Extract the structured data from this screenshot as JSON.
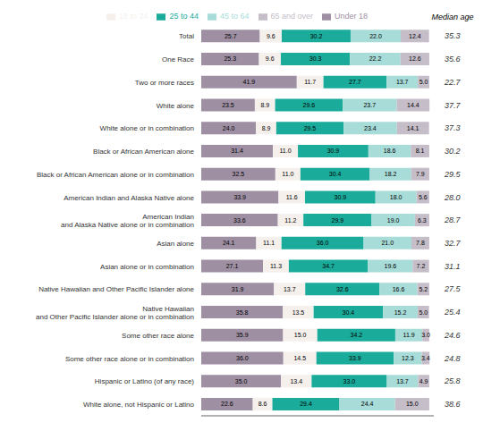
{
  "chart_data": {
    "type": "bar",
    "orientation": "horizontal",
    "stacked": true,
    "data_labels": true,
    "grid": false,
    "legend": "top",
    "tick_labels": "y",
    "xlim": [
      0,
      102
    ],
    "categories": [
      "Total",
      "One Race",
      "Two or more races",
      "White alone",
      "White alone or in combination",
      "Black or African American alone",
      "Black or African American alone or in combination",
      "American Indian and Alaska Native alone",
      "American Indian\nand Alaska Native alone or in combination",
      "Asian alone",
      "Asian alone or in combination",
      "Native Hawaiian and Other Pacific Islander alone",
      "Native Hawaiian\nand Other Pacific Islander alone or in combination",
      "Some other race alone",
      "Some other race alone or in combination",
      "Hispanic or Latino (of any race)",
      "White alone, not Hispanic or Latino"
    ],
    "series": [
      {
        "name": "Under 18",
        "color": "#9e8fa3",
        "values": [
          25.7,
          25.3,
          41.9,
          23.5,
          24.0,
          31.4,
          32.5,
          33.9,
          33.6,
          24.1,
          27.1,
          31.9,
          35.8,
          35.9,
          36.0,
          35.0,
          22.6
        ],
        "value_labels": [
          "25.7",
          "25.3",
          "41.9",
          "23.5",
          "24.0",
          "31.4",
          "32.5",
          "33.9",
          "33.6",
          "24.1",
          "27.1",
          "31.9",
          "35.8",
          "35.9",
          "36.0",
          "35.0",
          "22.6"
        ]
      },
      {
        "name": "18 to 24",
        "color": "#f5f0ec",
        "values": [
          9.6,
          9.6,
          11.7,
          8.9,
          8.9,
          11.0,
          11.0,
          11.6,
          11.2,
          11.1,
          11.3,
          13.7,
          13.5,
          15.0,
          14.5,
          13.4,
          8.6
        ],
        "value_labels": [
          "9.6",
          "9.6",
          "11.7",
          "8.9",
          "8.9",
          "11.0",
          "11.0",
          "11.6",
          "11.2",
          "11.1",
          "11.3",
          "13.7",
          "13.5",
          "15.0",
          "14.5",
          "13.4",
          "8.6"
        ]
      },
      {
        "name": "25 to 44",
        "color": "#1aab9b",
        "values": [
          30.2,
          30.3,
          27.7,
          29.6,
          29.5,
          30.9,
          30.4,
          30.9,
          29.9,
          36.0,
          34.7,
          32.6,
          30.4,
          34.2,
          33.9,
          33.0,
          29.4
        ],
        "value_labels": [
          "30.2",
          "30.3",
          "27.7",
          "29.6",
          "29.5",
          "30.9",
          "30.4",
          "30.9",
          "29.9",
          "36.0",
          "34.7",
          "32.6",
          "30.4",
          "34.2",
          "33.9",
          "33.0",
          "29.4"
        ]
      },
      {
        "name": "45 to 64",
        "color": "#a8dcd8",
        "values": [
          22.0,
          22.2,
          13.7,
          23.7,
          23.4,
          18.6,
          18.2,
          18.0,
          19.0,
          21.0,
          19.6,
          16.6,
          15.2,
          11.9,
          12.3,
          13.7,
          24.4
        ],
        "value_labels": [
          "22.0",
          "22.2",
          "13.7",
          "23.7",
          "23.4",
          "18.6",
          "18.2",
          "18.0",
          "19.0",
          "21.0",
          "19.6",
          "16.6",
          "15.2",
          "11.9",
          "12.3",
          "13.7",
          "24.4"
        ]
      },
      {
        "name": "65 and over",
        "color": "#c5bdc8",
        "values": [
          12.4,
          12.6,
          5.0,
          14.4,
          14.1,
          8.1,
          7.9,
          5.6,
          6.3,
          7.8,
          7.2,
          5.2,
          5.0,
          3.0,
          3.4,
          4.9,
          15.0
        ],
        "value_labels": [
          "12.4",
          "12.6",
          "5.0",
          "14.4",
          "14.1",
          "8.1",
          "7.9",
          "5.6",
          "6.3",
          "7.8",
          "7.2",
          "5.2",
          "5.0",
          "3.0",
          "3.4",
          "4.9",
          "15.0"
        ]
      }
    ],
    "median_age": {
      "title": "Median age",
      "values": [
        35.3,
        35.6,
        22.7,
        37.7,
        37.3,
        30.2,
        29.5,
        28.0,
        28.7,
        32.7,
        31.1,
        27.5,
        25.4,
        24.6,
        24.8,
        25.8,
        38.6
      ],
      "value_labels": [
        "35.3",
        "35.6",
        "22.7",
        "37.7",
        "37.3",
        "30.2",
        "29.5",
        "28.0",
        "28.7",
        "32.7",
        "31.1",
        "27.5",
        "25.4",
        "24.6",
        "24.8",
        "25.8",
        "38.6"
      ]
    }
  }
}
